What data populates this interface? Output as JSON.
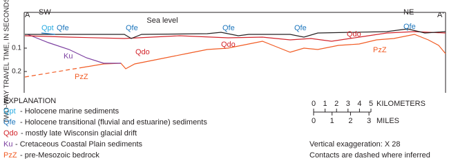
{
  "section": {
    "left_end": "A",
    "left_direction": "SW",
    "right_direction": "NE",
    "right_end": "A'",
    "sea_level": "Sea level"
  },
  "axis": {
    "title": "TWO-WAY TRAVEL TIME, IN SECONDS",
    "ticks": [
      "0.1",
      "0.2"
    ]
  },
  "unit_labels": [
    {
      "text": "Qpt"
    },
    {
      "text": "Qfe"
    },
    {
      "text": "Qfe"
    },
    {
      "text": "Qfe"
    },
    {
      "text": "Qfe"
    },
    {
      "text": "Qfe"
    },
    {
      "text": "Qdo"
    },
    {
      "text": "Qdo"
    },
    {
      "text": "Qdo"
    },
    {
      "text": "Ku"
    },
    {
      "text": "PzZ"
    },
    {
      "text": "PzZ"
    }
  ],
  "legend": {
    "title": "EXPLANATION",
    "items": [
      {
        "code": "Qpt",
        "description": "- Holocene marine sediments"
      },
      {
        "code": "Qfe",
        "description": "- Holocene transitional (fluvial and estuarine) sediments"
      },
      {
        "code": "Qdo",
        "description": "- mostly late Wisconsin glacial drift"
      },
      {
        "code": "Ku",
        "description": "- Cretaceous Coastal Plain sediments"
      },
      {
        "code": "PzZ",
        "description": "- pre-Mesozoic bedrock"
      }
    ]
  },
  "scale": {
    "km_ticks": [
      "0",
      "1",
      "2",
      "3",
      "4",
      "5"
    ],
    "km_label": "KILOMETERS",
    "mile_ticks": [
      "0",
      "1",
      "2",
      "3"
    ],
    "mile_label": "MILES"
  },
  "notes": [
    "Vertical exaggeration:  X 28",
    "Contacts are dashed where inferred"
  ]
}
